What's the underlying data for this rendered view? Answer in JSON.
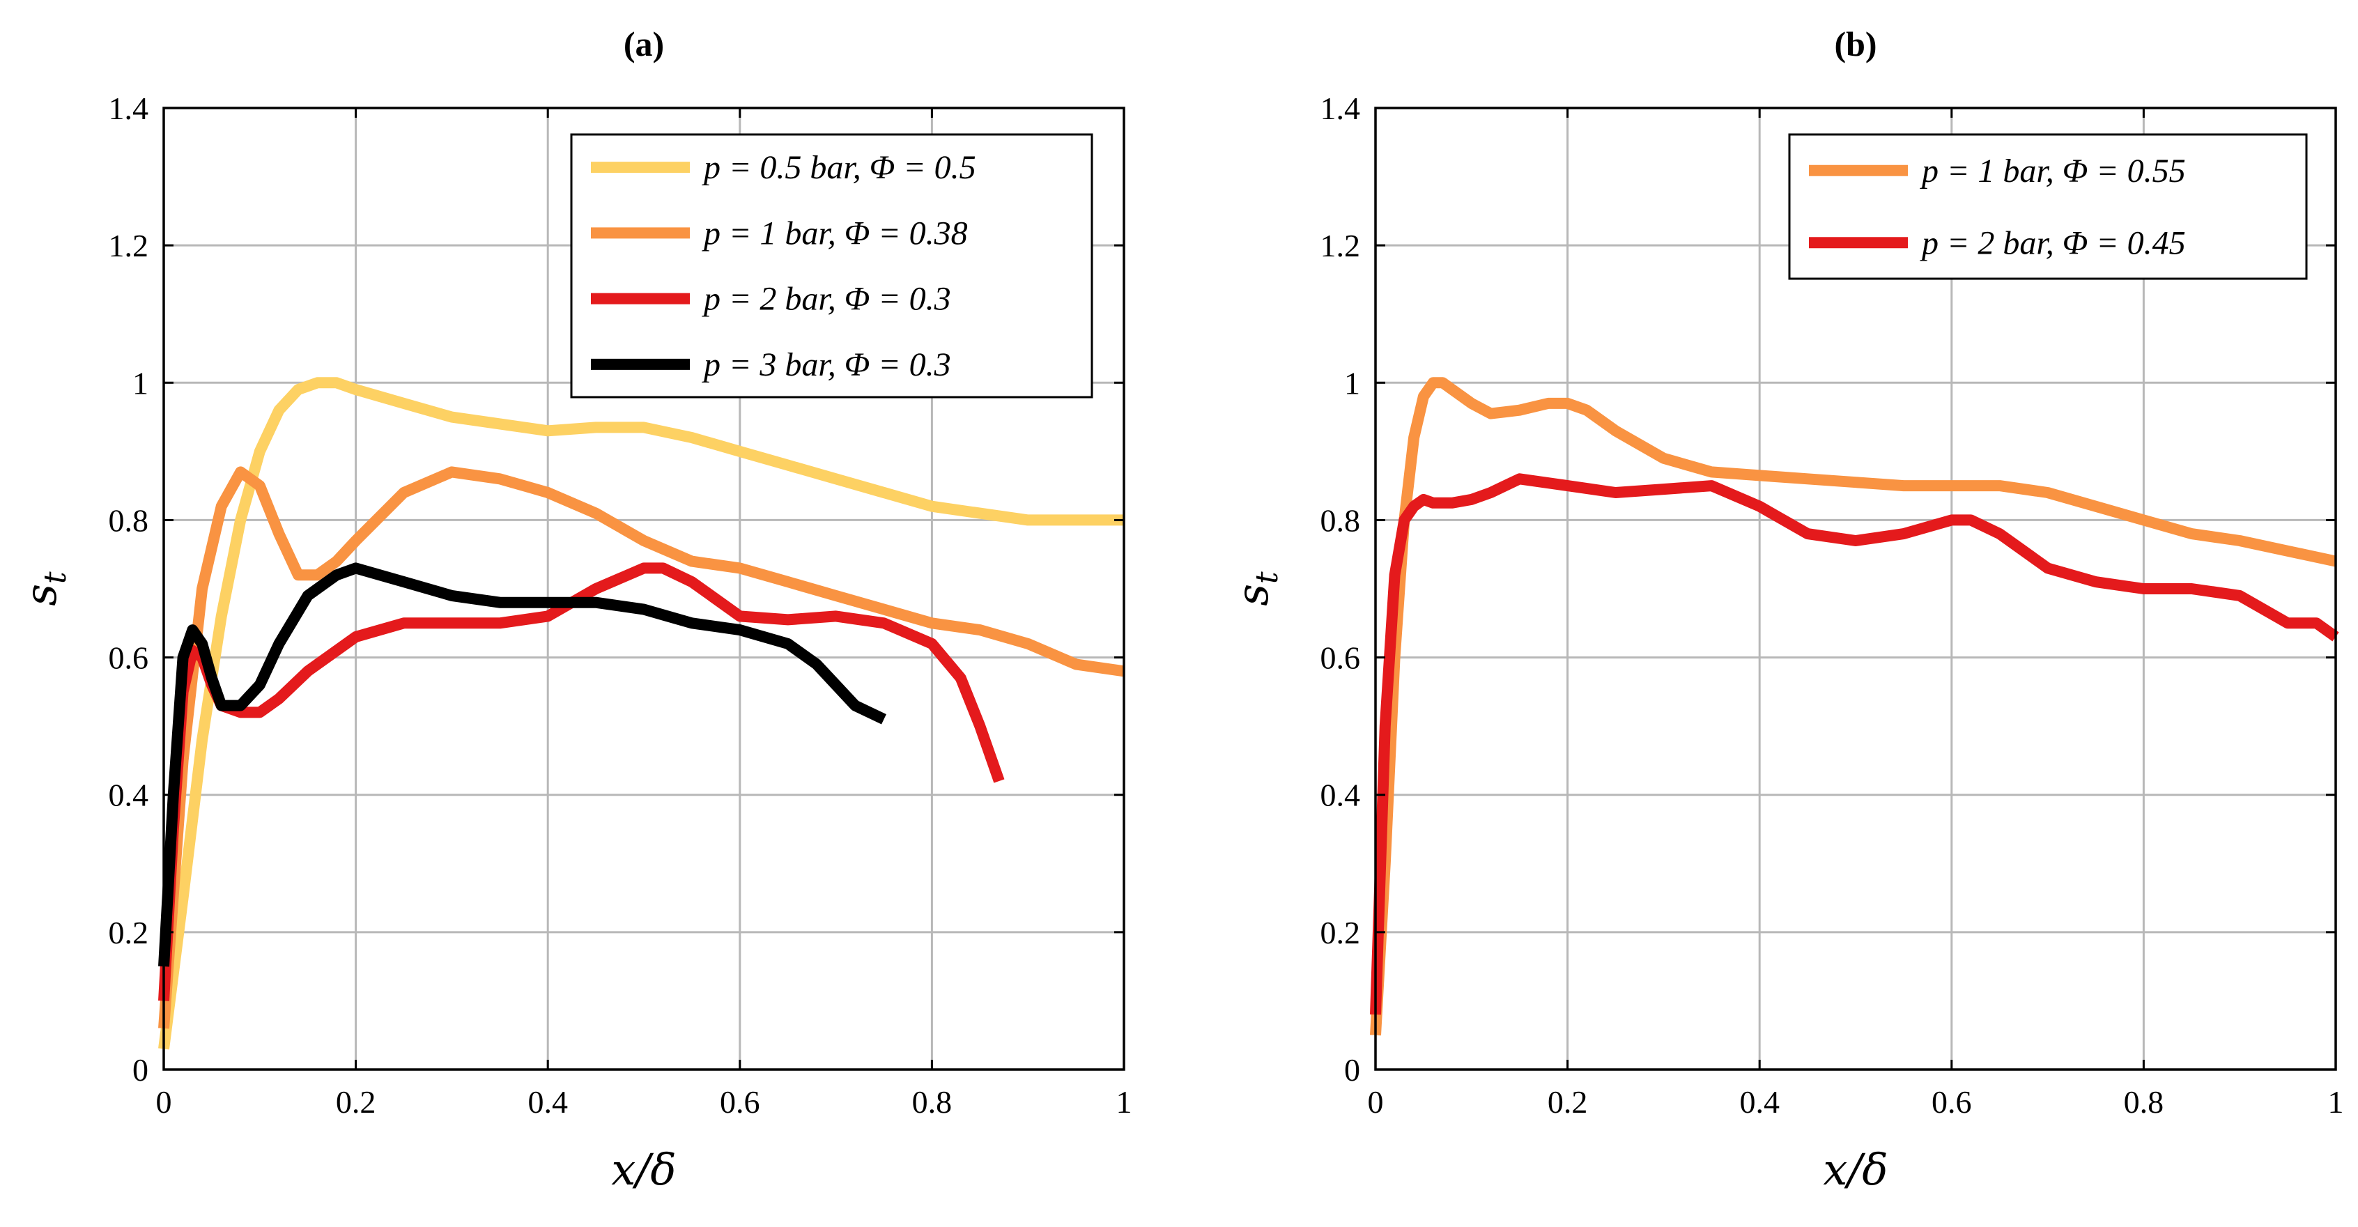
{
  "chart_data": [
    {
      "type": "line",
      "title": "(a)",
      "xlabel": "x/δ",
      "ylabel": "s_t",
      "xlim": [
        0,
        1
      ],
      "ylim": [
        0,
        1.4
      ],
      "xticks": [
        "0",
        "0.2",
        "0.4",
        "0.6",
        "0.8",
        "1"
      ],
      "yticks": [
        "0",
        "0.2",
        "0.4",
        "0.6",
        "0.8",
        "1",
        "1.2",
        "1.4"
      ],
      "grid": true,
      "legend_position": "top-right",
      "series": [
        {
          "name": "p = 0.5 bar, Φ = 0.5",
          "color": "#fdd163",
          "x": [
            0,
            0.02,
            0.04,
            0.06,
            0.08,
            0.1,
            0.12,
            0.14,
            0.16,
            0.18,
            0.2,
            0.25,
            0.3,
            0.35,
            0.4,
            0.45,
            0.5,
            0.55,
            0.6,
            0.65,
            0.7,
            0.75,
            0.8,
            0.85,
            0.9,
            0.95,
            1.0
          ],
          "y": [
            0.03,
            0.25,
            0.48,
            0.66,
            0.8,
            0.9,
            0.96,
            0.99,
            1.0,
            1.0,
            0.99,
            0.97,
            0.95,
            0.94,
            0.93,
            0.935,
            0.935,
            0.92,
            0.9,
            0.88,
            0.86,
            0.84,
            0.82,
            0.81,
            0.8,
            0.8,
            0.8
          ]
        },
        {
          "name": "p = 1 bar, Φ = 0.38",
          "color": "#f99342",
          "x": [
            0,
            0.02,
            0.04,
            0.06,
            0.08,
            0.1,
            0.12,
            0.14,
            0.16,
            0.18,
            0.2,
            0.25,
            0.3,
            0.35,
            0.4,
            0.45,
            0.5,
            0.55,
            0.6,
            0.65,
            0.7,
            0.75,
            0.8,
            0.85,
            0.9,
            0.95,
            1.0
          ],
          "y": [
            0.06,
            0.45,
            0.7,
            0.82,
            0.87,
            0.85,
            0.78,
            0.72,
            0.72,
            0.74,
            0.77,
            0.84,
            0.87,
            0.86,
            0.84,
            0.81,
            0.77,
            0.74,
            0.73,
            0.71,
            0.69,
            0.67,
            0.65,
            0.64,
            0.62,
            0.59,
            0.58
          ]
        },
        {
          "name": "p = 2 bar, Φ = 0.3",
          "color": "#e41a1c",
          "x": [
            0,
            0.01,
            0.02,
            0.03,
            0.04,
            0.05,
            0.06,
            0.08,
            0.1,
            0.12,
            0.15,
            0.2,
            0.25,
            0.3,
            0.35,
            0.4,
            0.45,
            0.5,
            0.52,
            0.55,
            0.6,
            0.65,
            0.7,
            0.75,
            0.8,
            0.83,
            0.85,
            0.87
          ],
          "y": [
            0.1,
            0.35,
            0.55,
            0.61,
            0.6,
            0.56,
            0.53,
            0.52,
            0.52,
            0.54,
            0.58,
            0.63,
            0.65,
            0.65,
            0.65,
            0.66,
            0.7,
            0.73,
            0.73,
            0.71,
            0.66,
            0.655,
            0.66,
            0.65,
            0.62,
            0.57,
            0.5,
            0.42
          ]
        },
        {
          "name": "p = 3 bar, Φ = 0.3",
          "color": "#000000",
          "x": [
            0,
            0.01,
            0.02,
            0.03,
            0.04,
            0.05,
            0.06,
            0.08,
            0.1,
            0.12,
            0.15,
            0.18,
            0.2,
            0.25,
            0.3,
            0.35,
            0.4,
            0.45,
            0.5,
            0.55,
            0.6,
            0.65,
            0.68,
            0.7,
            0.72,
            0.75
          ],
          "y": [
            0.15,
            0.4,
            0.6,
            0.64,
            0.62,
            0.57,
            0.53,
            0.53,
            0.56,
            0.62,
            0.69,
            0.72,
            0.73,
            0.71,
            0.69,
            0.68,
            0.68,
            0.68,
            0.67,
            0.65,
            0.64,
            0.62,
            0.59,
            0.56,
            0.53,
            0.51
          ]
        }
      ]
    },
    {
      "type": "line",
      "title": "(b)",
      "xlabel": "x/δ",
      "ylabel": "s_t",
      "xlim": [
        0,
        1
      ],
      "ylim": [
        0,
        1.4
      ],
      "xticks": [
        "0",
        "0.2",
        "0.4",
        "0.6",
        "0.8",
        "1"
      ],
      "yticks": [
        "0",
        "0.2",
        "0.4",
        "0.6",
        "0.8",
        "1",
        "1.2",
        "1.4"
      ],
      "grid": true,
      "legend_position": "top-right",
      "series": [
        {
          "name": "p = 1 bar, Φ = 0.55",
          "color": "#f99342",
          "x": [
            0,
            0.01,
            0.02,
            0.03,
            0.04,
            0.05,
            0.06,
            0.07,
            0.08,
            0.1,
            0.12,
            0.15,
            0.18,
            0.2,
            0.22,
            0.25,
            0.3,
            0.35,
            0.4,
            0.45,
            0.5,
            0.55,
            0.6,
            0.65,
            0.7,
            0.75,
            0.8,
            0.85,
            0.9,
            0.95,
            1.0
          ],
          "y": [
            0.05,
            0.3,
            0.6,
            0.8,
            0.92,
            0.98,
            1.0,
            1.0,
            0.99,
            0.97,
            0.955,
            0.96,
            0.97,
            0.97,
            0.96,
            0.93,
            0.89,
            0.87,
            0.865,
            0.86,
            0.855,
            0.85,
            0.85,
            0.85,
            0.84,
            0.82,
            0.8,
            0.78,
            0.77,
            0.755,
            0.74
          ]
        },
        {
          "name": "p = 2 bar, Φ = 0.45",
          "color": "#e41a1c",
          "x": [
            0,
            0.01,
            0.02,
            0.03,
            0.04,
            0.05,
            0.06,
            0.08,
            0.1,
            0.12,
            0.15,
            0.2,
            0.25,
            0.3,
            0.35,
            0.4,
            0.45,
            0.5,
            0.55,
            0.6,
            0.62,
            0.65,
            0.7,
            0.75,
            0.8,
            0.85,
            0.9,
            0.95,
            0.98,
            1.0
          ],
          "y": [
            0.08,
            0.5,
            0.72,
            0.8,
            0.82,
            0.83,
            0.825,
            0.825,
            0.83,
            0.84,
            0.86,
            0.85,
            0.84,
            0.845,
            0.85,
            0.82,
            0.78,
            0.77,
            0.78,
            0.8,
            0.8,
            0.78,
            0.73,
            0.71,
            0.7,
            0.7,
            0.69,
            0.65,
            0.65,
            0.63
          ]
        }
      ]
    }
  ]
}
